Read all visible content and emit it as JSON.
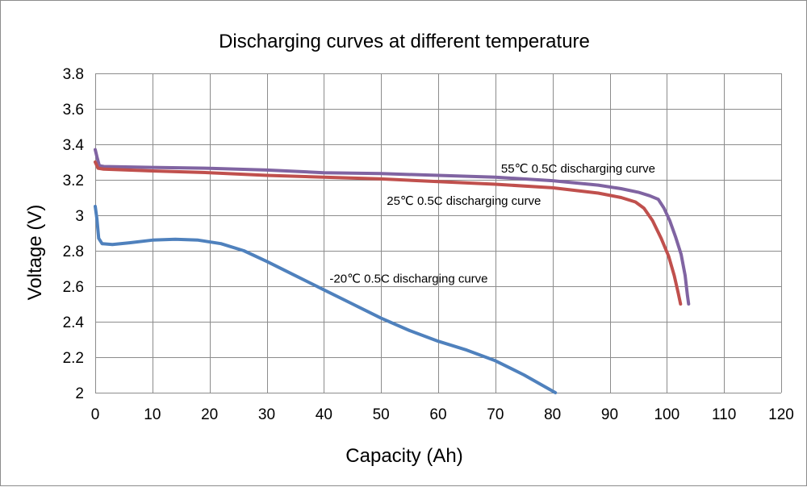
{
  "chart_data": {
    "type": "line",
    "title": "Discharging curves at different temperature",
    "xlabel": "Capacity (Ah)",
    "ylabel": "Voltage (V)",
    "xlim": [
      0,
      120
    ],
    "ylim": [
      2,
      3.8
    ],
    "x_ticks": [
      "0",
      "10",
      "20",
      "30",
      "40",
      "50",
      "60",
      "70",
      "80",
      "90",
      "100",
      "110",
      "120"
    ],
    "y_ticks": [
      "2",
      "2.2",
      "2.4",
      "2.6",
      "2.8",
      "3",
      "3.2",
      "3.4",
      "3.6",
      "3.8"
    ],
    "x_tick_values": [
      0,
      10,
      20,
      30,
      40,
      50,
      60,
      70,
      80,
      90,
      100,
      110,
      120
    ],
    "y_tick_values": [
      2,
      2.2,
      2.4,
      2.6,
      2.8,
      3,
      3.2,
      3.4,
      3.6,
      3.8
    ],
    "grid": true,
    "series": [
      {
        "name": "55℃ 0.5C discharging curve",
        "color": "#8064a2",
        "points": [
          [
            0,
            3.37
          ],
          [
            0.3,
            3.33
          ],
          [
            0.7,
            3.28
          ],
          [
            1.5,
            3.275
          ],
          [
            10,
            3.27
          ],
          [
            20,
            3.265
          ],
          [
            30,
            3.255
          ],
          [
            40,
            3.24
          ],
          [
            50,
            3.235
          ],
          [
            60,
            3.225
          ],
          [
            70,
            3.215
          ],
          [
            80,
            3.195
          ],
          [
            88,
            3.17
          ],
          [
            92,
            3.15
          ],
          [
            95,
            3.13
          ],
          [
            97,
            3.11
          ],
          [
            98.5,
            3.09
          ],
          [
            99.5,
            3.04
          ],
          [
            100.5,
            2.97
          ],
          [
            101.5,
            2.88
          ],
          [
            102.5,
            2.78
          ],
          [
            103.2,
            2.66
          ],
          [
            103.6,
            2.55
          ],
          [
            103.8,
            2.5
          ]
        ]
      },
      {
        "name": "25℃ 0.5C discharging curve",
        "color": "#c0504d",
        "points": [
          [
            0,
            3.3
          ],
          [
            0.5,
            3.265
          ],
          [
            1.5,
            3.26
          ],
          [
            10,
            3.25
          ],
          [
            20,
            3.24
          ],
          [
            30,
            3.225
          ],
          [
            40,
            3.215
          ],
          [
            50,
            3.205
          ],
          [
            60,
            3.19
          ],
          [
            70,
            3.175
          ],
          [
            80,
            3.155
          ],
          [
            88,
            3.125
          ],
          [
            92,
            3.1
          ],
          [
            94.5,
            3.075
          ],
          [
            96,
            3.04
          ],
          [
            97.5,
            2.97
          ],
          [
            99,
            2.87
          ],
          [
            100.3,
            2.77
          ],
          [
            101.3,
            2.66
          ],
          [
            102,
            2.56
          ],
          [
            102.4,
            2.5
          ]
        ]
      },
      {
        "name": "-20℃ 0.5C discharging curve",
        "color": "#4f81bd",
        "points": [
          [
            0,
            3.05
          ],
          [
            0.3,
            2.98
          ],
          [
            0.6,
            2.87
          ],
          [
            1.2,
            2.84
          ],
          [
            3,
            2.835
          ],
          [
            6,
            2.845
          ],
          [
            10,
            2.86
          ],
          [
            14,
            2.865
          ],
          [
            18,
            2.86
          ],
          [
            22,
            2.84
          ],
          [
            26,
            2.8
          ],
          [
            30,
            2.74
          ],
          [
            35,
            2.66
          ],
          [
            40,
            2.58
          ],
          [
            45,
            2.5
          ],
          [
            50,
            2.42
          ],
          [
            55,
            2.35
          ],
          [
            60,
            2.29
          ],
          [
            65,
            2.24
          ],
          [
            70,
            2.18
          ],
          [
            75,
            2.1
          ],
          [
            80.5,
            2.0
          ]
        ]
      }
    ],
    "annotations": [
      {
        "text": "55℃ 0.5C discharging curve",
        "x": 71,
        "y": 3.24
      },
      {
        "text": "25℃ 0.5C discharging curve",
        "x": 51,
        "y": 3.06
      },
      {
        "text": "-20℃ 0.5C discharging curve",
        "x": 41,
        "y": 2.62
      }
    ]
  }
}
